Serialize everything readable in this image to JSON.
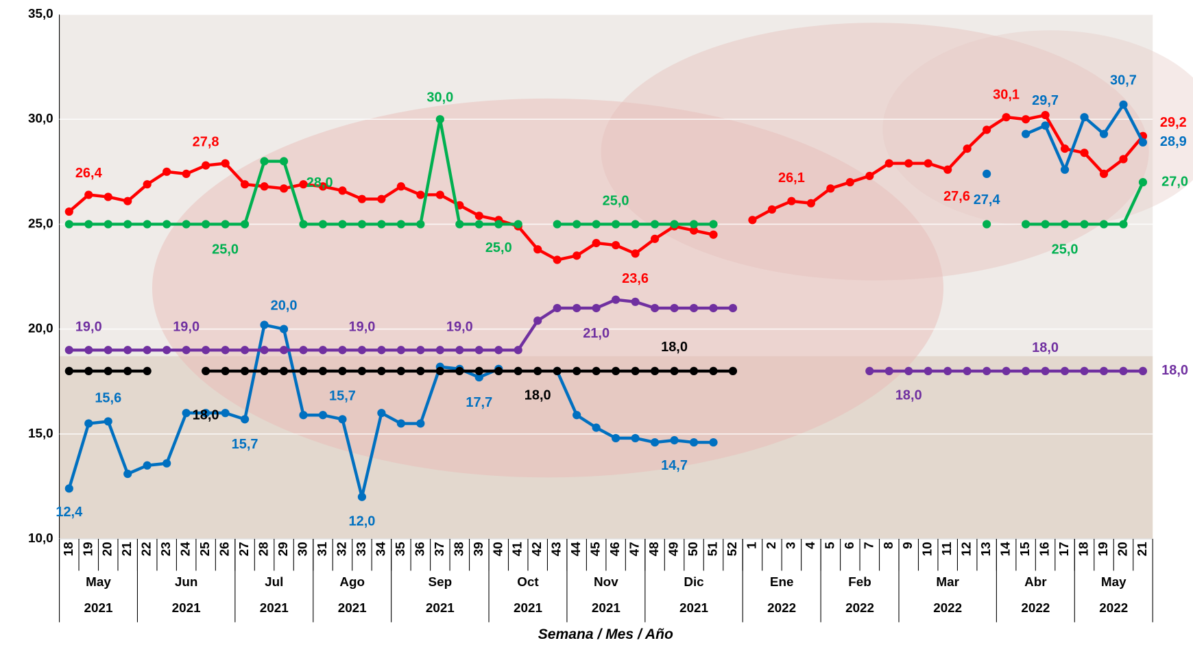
{
  "chart_data": {
    "type": "line",
    "x_label": "Semana / Mes / Año",
    "categories": [
      "18",
      "19",
      "20",
      "21",
      "22",
      "23",
      "24",
      "25",
      "26",
      "27",
      "28",
      "29",
      "30",
      "31",
      "32",
      "33",
      "34",
      "35",
      "36",
      "37",
      "38",
      "39",
      "40",
      "41",
      "42",
      "43",
      "44",
      "45",
      "46",
      "47",
      "48",
      "49",
      "50",
      "51",
      "52",
      "1",
      "2",
      "3",
      "4",
      "5",
      "6",
      "7",
      "8",
      "9",
      "10",
      "11",
      "12",
      "13",
      "14",
      "15",
      "16",
      "17",
      "18",
      "19",
      "20",
      "21"
    ],
    "months": [
      "May",
      "May",
      "May",
      "May",
      "Jun",
      "Jun",
      "Jun",
      "Jun",
      "Jun",
      "Jul",
      "Jul",
      "Jul",
      "Jul",
      "Ago",
      "Ago",
      "Ago",
      "Ago",
      "Sep",
      "Sep",
      "Sep",
      "Sep",
      "Sep",
      "Oct",
      "Oct",
      "Oct",
      "Oct",
      "Nov",
      "Nov",
      "Nov",
      "Nov",
      "Dic",
      "Dic",
      "Dic",
      "Dic",
      "Dic",
      "Ene",
      "Ene",
      "Ene",
      "Ene",
      "Feb",
      "Feb",
      "Feb",
      "Feb",
      "Mar",
      "Mar",
      "Mar",
      "Mar",
      "Mar",
      "Abr",
      "Abr",
      "Abr",
      "Abr",
      "May",
      "May",
      "May",
      "May"
    ],
    "years": [
      "2021",
      "2021",
      "2021",
      "2021",
      "2021",
      "2021",
      "2021",
      "2021",
      "2021",
      "2021",
      "2021",
      "2021",
      "2021",
      "2021",
      "2021",
      "2021",
      "2021",
      "2021",
      "2021",
      "2021",
      "2021",
      "2021",
      "2021",
      "2021",
      "2021",
      "2021",
      "2021",
      "2021",
      "2021",
      "2021",
      "2021",
      "2021",
      "2021",
      "2021",
      "2021",
      "2022",
      "2022",
      "2022",
      "2022",
      "2022",
      "2022",
      "2022",
      "2022",
      "2022",
      "2022",
      "2022",
      "2022",
      "2022",
      "2022",
      "2022",
      "2022",
      "2022",
      "2022",
      "2022",
      "2022",
      "2022"
    ],
    "ylim": [
      10,
      35
    ],
    "yticks": [
      {
        "value": 10,
        "label": "10,0"
      },
      {
        "value": 15,
        "label": "15,0"
      },
      {
        "value": 20,
        "label": "20,0"
      },
      {
        "value": 25,
        "label": "25,0"
      },
      {
        "value": 30,
        "label": "30,0"
      },
      {
        "value": 35,
        "label": "35,0"
      }
    ],
    "grid": true,
    "series": [
      {
        "color": "#ff0000",
        "values": [
          25.6,
          26.4,
          26.3,
          26.1,
          26.9,
          27.5,
          27.4,
          27.8,
          27.9,
          26.9,
          26.8,
          26.7,
          26.9,
          26.8,
          26.6,
          26.2,
          26.2,
          26.8,
          26.4,
          26.4,
          25.9,
          25.4,
          25.2,
          24.9,
          23.8,
          23.3,
          23.5,
          24.1,
          24.0,
          23.6,
          24.3,
          24.9,
          24.7,
          24.5,
          null,
          25.2,
          25.7,
          26.1,
          26.0,
          26.7,
          27.0,
          27.3,
          27.9,
          27.9,
          27.9,
          27.6,
          28.6,
          29.5,
          30.1,
          30.0,
          30.2,
          28.6,
          28.4,
          27.4,
          28.1,
          29.2
        ],
        "value_labels": [
          null,
          "26,4",
          null,
          null,
          null,
          null,
          null,
          "27,8",
          null,
          null,
          null,
          null,
          null,
          null,
          null,
          null,
          null,
          null,
          null,
          null,
          null,
          null,
          null,
          null,
          null,
          null,
          null,
          null,
          null,
          "23,6",
          null,
          null,
          null,
          null,
          null,
          null,
          null,
          "26,1",
          null,
          null,
          null,
          null,
          null,
          null,
          null,
          "27,6",
          null,
          null,
          "30,1",
          null,
          null,
          null,
          null,
          null,
          null,
          "29,2"
        ]
      },
      {
        "color": "#00b050",
        "values": [
          25,
          25,
          25,
          25,
          25,
          25,
          25,
          25,
          25,
          25,
          28,
          28,
          25,
          25,
          25,
          25,
          25,
          25,
          25,
          30,
          25,
          25,
          25,
          25,
          null,
          25,
          25,
          25,
          25,
          25,
          25,
          25,
          25,
          25,
          null,
          null,
          null,
          null,
          null,
          null,
          null,
          null,
          null,
          null,
          null,
          null,
          null,
          25,
          null,
          25,
          25,
          25,
          25,
          25,
          25,
          27
        ],
        "value_labels": [
          null,
          null,
          null,
          null,
          null,
          null,
          null,
          null,
          "25,0",
          null,
          null,
          "28,0",
          null,
          null,
          null,
          null,
          null,
          null,
          null,
          "30,0",
          null,
          null,
          "25,0",
          null,
          null,
          null,
          null,
          null,
          "25,0",
          null,
          null,
          null,
          null,
          null,
          null,
          null,
          null,
          null,
          null,
          null,
          null,
          null,
          null,
          null,
          null,
          null,
          null,
          null,
          null,
          null,
          null,
          "25,0",
          null,
          null,
          null,
          "27,0"
        ]
      },
      {
        "color": "#0070c0",
        "values": [
          12.4,
          15.5,
          15.6,
          13.1,
          13.5,
          13.6,
          16.0,
          16.0,
          16.0,
          15.7,
          20.2,
          20.0,
          15.9,
          15.9,
          15.7,
          12.0,
          16.0,
          15.5,
          15.5,
          18.2,
          18.1,
          17.7,
          18.1,
          null,
          null,
          18.0,
          15.9,
          15.3,
          14.8,
          14.8,
          14.6,
          14.7,
          14.6,
          14.6,
          null,
          null,
          null,
          null,
          null,
          null,
          null,
          null,
          null,
          null,
          null,
          null,
          null,
          27.4,
          null,
          29.3,
          29.7,
          27.6,
          30.1,
          29.3,
          30.7,
          28.9
        ],
        "value_labels": [
          "12,4",
          null,
          "15,6",
          null,
          null,
          null,
          null,
          null,
          null,
          "15,7",
          null,
          "20,0",
          null,
          null,
          "15,7",
          "12,0",
          null,
          null,
          null,
          null,
          null,
          "17,7",
          null,
          null,
          null,
          null,
          null,
          null,
          null,
          null,
          null,
          "14,7",
          null,
          null,
          null,
          null,
          null,
          null,
          null,
          null,
          null,
          null,
          null,
          null,
          null,
          null,
          null,
          "27,4",
          null,
          null,
          "29,7",
          null,
          null,
          null,
          "30,7",
          "28,9"
        ]
      },
      {
        "color": "#7030a0",
        "values": [
          19,
          19,
          19,
          19,
          19,
          19,
          19,
          19,
          19,
          19,
          19,
          19,
          19,
          19,
          19,
          19,
          19,
          19,
          19,
          19,
          19,
          19,
          19,
          19,
          20.4,
          21,
          21,
          21,
          21.4,
          21.3,
          21,
          21,
          21,
          21,
          21,
          null,
          null,
          null,
          null,
          null,
          null,
          18,
          18,
          18,
          18,
          18,
          18,
          18,
          18,
          18,
          18,
          18,
          18,
          18,
          18,
          18
        ],
        "value_labels": [
          null,
          "19,0",
          null,
          null,
          null,
          null,
          "19,0",
          null,
          null,
          null,
          null,
          null,
          null,
          null,
          null,
          "19,0",
          null,
          null,
          null,
          null,
          "19,0",
          null,
          null,
          null,
          null,
          null,
          null,
          "21,0",
          null,
          null,
          null,
          null,
          null,
          null,
          null,
          null,
          null,
          null,
          null,
          null,
          null,
          null,
          null,
          "18,0",
          null,
          null,
          null,
          null,
          null,
          null,
          "18,0",
          null,
          null,
          null,
          null,
          "18,0"
        ]
      },
      {
        "color": "#000000",
        "values": [
          18,
          18,
          18,
          18,
          18,
          null,
          null,
          18,
          18,
          18,
          18,
          18,
          18,
          18,
          18,
          18,
          18,
          18,
          18,
          18,
          18,
          18,
          18,
          18,
          18,
          18,
          18,
          18,
          18,
          18,
          18,
          18,
          18,
          18,
          18,
          null,
          null,
          null,
          null,
          null,
          null,
          null,
          null,
          null,
          null,
          null,
          null,
          null,
          null,
          null,
          null,
          null,
          null,
          null,
          null,
          null
        ],
        "value_labels": [
          null,
          null,
          null,
          null,
          null,
          null,
          null,
          "18,0",
          null,
          null,
          null,
          null,
          null,
          null,
          null,
          null,
          null,
          null,
          null,
          null,
          null,
          null,
          null,
          null,
          "18,0",
          null,
          null,
          null,
          null,
          null,
          null,
          "18,0",
          null,
          null,
          null,
          null,
          null,
          null,
          null,
          null,
          null,
          null,
          null,
          null,
          null,
          null,
          null,
          null,
          null,
          null,
          null,
          null,
          null,
          null,
          null,
          null
        ]
      }
    ]
  }
}
